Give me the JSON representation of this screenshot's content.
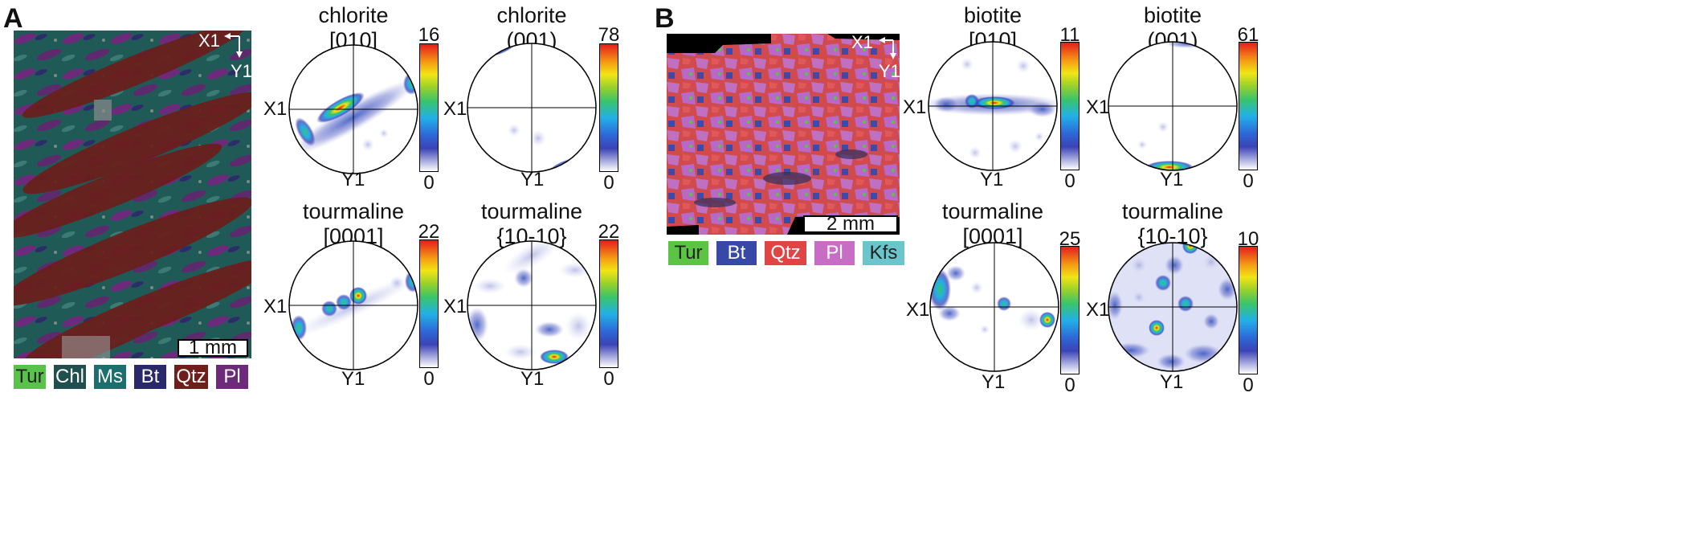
{
  "panels": {
    "a": {
      "letter": "A",
      "axes": {
        "x": "X1",
        "y": "Y1"
      },
      "scale": "1 mm",
      "legend": [
        {
          "label": "Tur",
          "color": "#58c24a",
          "text": "#222222"
        },
        {
          "label": "Chl",
          "color": "#1f4f4e",
          "text": "#ffffff"
        },
        {
          "label": "Ms",
          "color": "#1b6f6e",
          "text": "#ffffff"
        },
        {
          "label": "Bt",
          "color": "#28286b",
          "text": "#ffffff"
        },
        {
          "label": "Qtz",
          "color": "#6e1f1c",
          "text": "#ffffff"
        },
        {
          "label": "Pl",
          "color": "#6e2a7a",
          "text": "#ffffff"
        }
      ],
      "pole_figures": [
        {
          "mineral": "chlorite",
          "plane": "[010]",
          "max": "16",
          "min": "0",
          "x_label": "X1",
          "y_label": "Y1"
        },
        {
          "mineral": "chlorite",
          "plane": "(001)",
          "max": "78",
          "min": "0",
          "x_label": "X1",
          "y_label": "Y1"
        },
        {
          "mineral": "tourmaline",
          "plane": "[0001]",
          "max": "22",
          "min": "0",
          "x_label": "X1",
          "y_label": "Y1"
        },
        {
          "mineral": "tourmaline",
          "plane": "{10-10}",
          "max": "22",
          "min": "0",
          "x_label": "X1",
          "y_label": "Y1"
        }
      ]
    },
    "b": {
      "letter": "B",
      "axes": {
        "x": "X1",
        "y": "Y1"
      },
      "scale": "2 mm",
      "legend": [
        {
          "label": "Tur",
          "color": "#5bc443",
          "text": "#222222"
        },
        {
          "label": "Bt",
          "color": "#3848a6",
          "text": "#ffffff"
        },
        {
          "label": "Qtz",
          "color": "#e04545",
          "text": "#ffffff"
        },
        {
          "label": "Pl",
          "color": "#c76dc4",
          "text": "#ffffff"
        },
        {
          "label": "Kfs",
          "color": "#6bc6cc",
          "text": "#222222"
        }
      ],
      "pole_figures": [
        {
          "mineral": "biotite",
          "plane": "[010]",
          "max": "11",
          "min": "0",
          "x_label": "X1",
          "y_label": "Y1"
        },
        {
          "mineral": "biotite",
          "plane": "(001)",
          "max": "61",
          "min": "0",
          "x_label": "X1",
          "y_label": "Y1"
        },
        {
          "mineral": "tourmaline",
          "plane": "[0001]",
          "max": "25",
          "min": "0",
          "x_label": "X1",
          "y_label": "Y1"
        },
        {
          "mineral": "tourmaline",
          "plane": "{10-10}",
          "max": "10",
          "min": "0",
          "x_label": "X1",
          "y_label": "Y1"
        }
      ]
    }
  }
}
